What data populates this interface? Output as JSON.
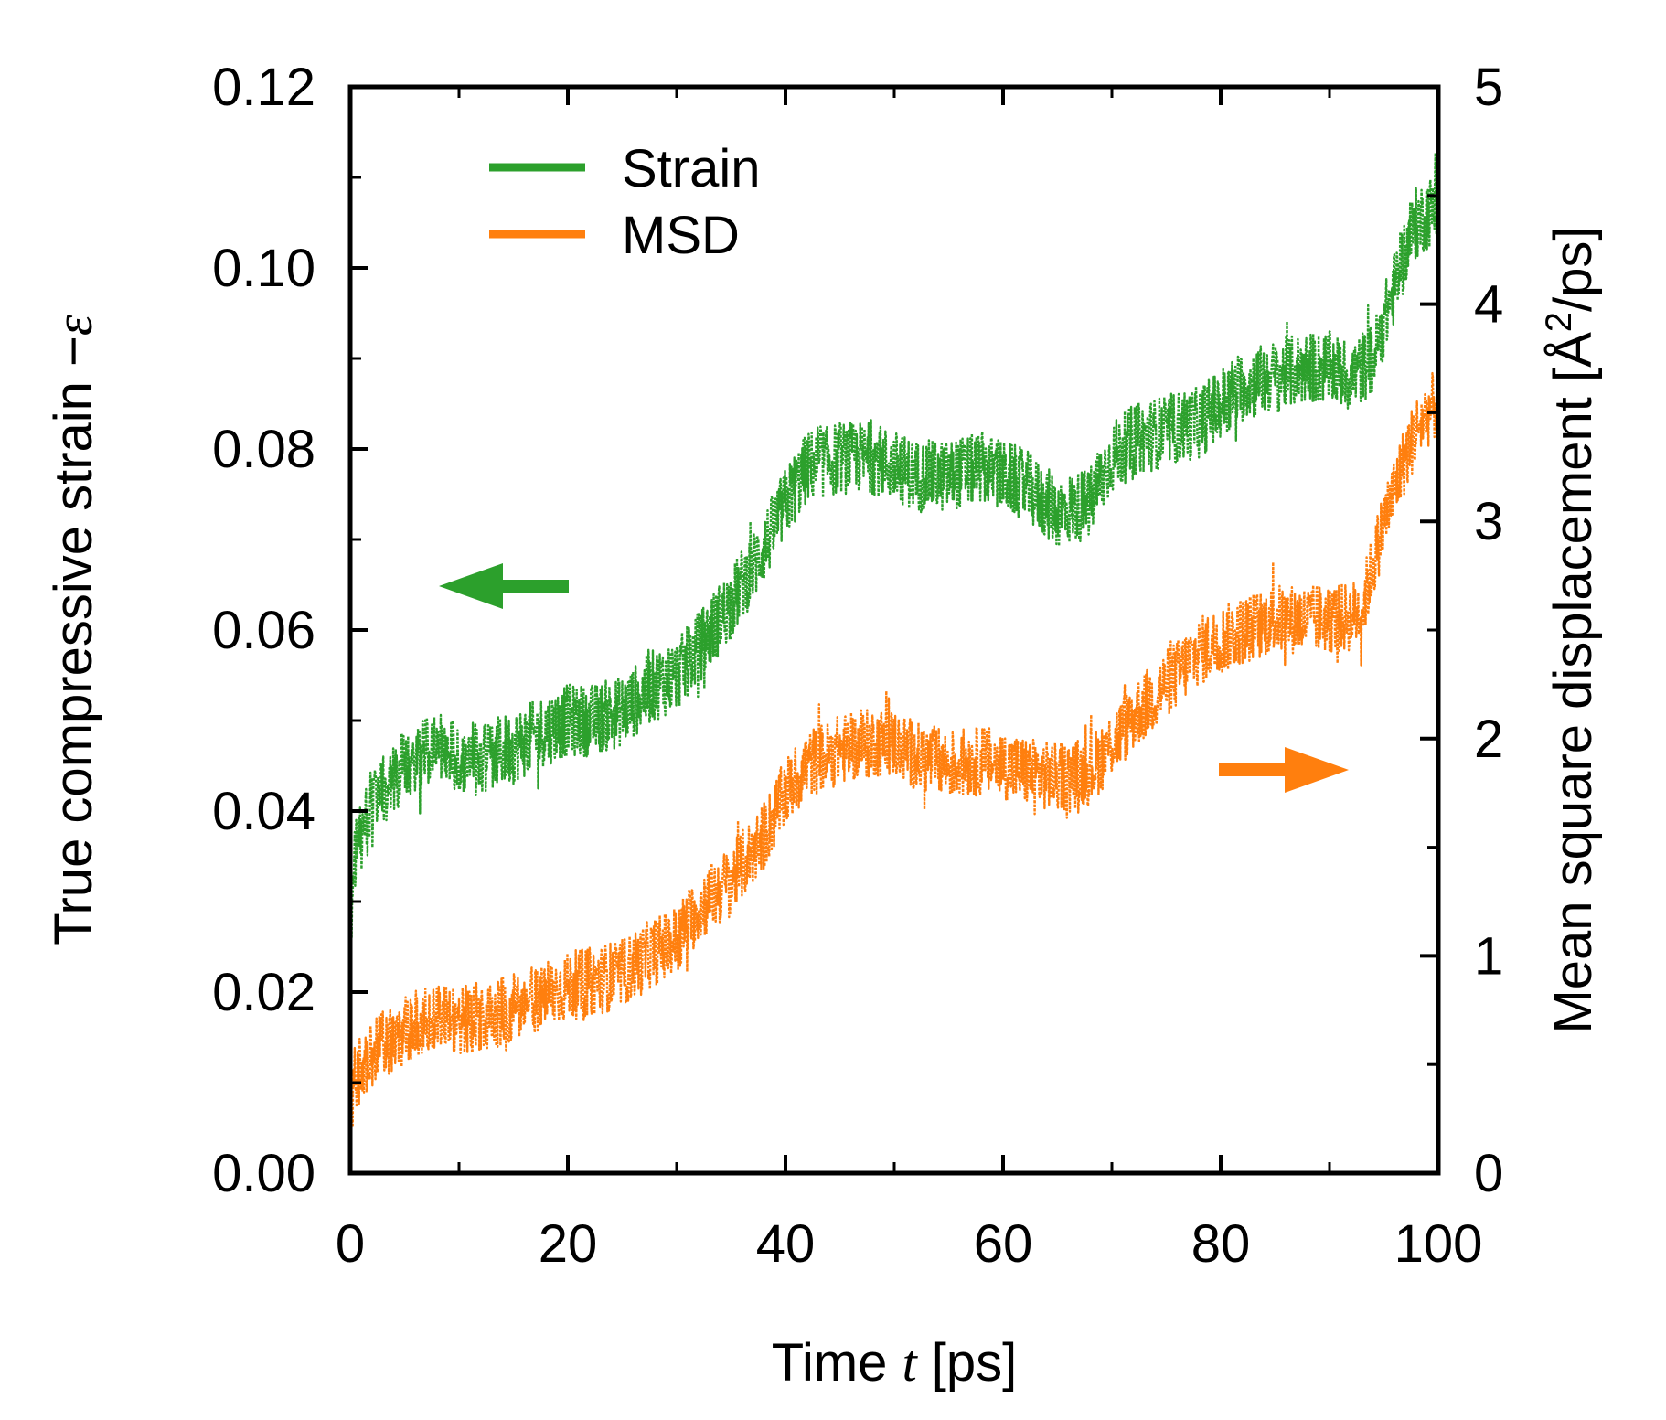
{
  "chart_data": {
    "type": "line",
    "title": "",
    "xlabel": "Time t [ps]",
    "xlabel_prefix": "Time ",
    "xlabel_var": "t",
    "xlabel_unit": " [ps]",
    "ylabel_left": "True compressive strain −ε",
    "ylabel_left_text": "True compressive strain −",
    "ylabel_left_var": "ε",
    "ylabel_right": "Mean square displacement [Å²/ps]",
    "ylabel_right_prefix": "Mean square displacement [Å",
    "ylabel_right_sup": "2",
    "ylabel_right_suffix": "/ps]",
    "xlim": [
      0,
      100
    ],
    "ylim_left": [
      0,
      0.12
    ],
    "ylim_right": [
      0,
      5
    ],
    "x_ticks": [
      "0",
      "20",
      "40",
      "60",
      "80",
      "100"
    ],
    "y_left_ticks": [
      "0.00",
      "0.02",
      "0.04",
      "0.06",
      "0.08",
      "0.10",
      "0.12"
    ],
    "y_right_ticks": [
      "0",
      "1",
      "2",
      "3",
      "4",
      "5"
    ],
    "legend_position": "top-left",
    "grid": false,
    "series": [
      {
        "name": "Strain",
        "axis": "left",
        "color": "#2ca02c",
        "trend_x": [
          0,
          0.5,
          2,
          4,
          6,
          8,
          10,
          12,
          15,
          18,
          20,
          22,
          25,
          28,
          30,
          32,
          35,
          38,
          40,
          42,
          45,
          48,
          50,
          52,
          55,
          58,
          60,
          62,
          65,
          68,
          70,
          72,
          75,
          78,
          80,
          82,
          85,
          88,
          90,
          92,
          94,
          95,
          96,
          97,
          98,
          99,
          100
        ],
        "trend_y": [
          0.026,
          0.036,
          0.04,
          0.044,
          0.046,
          0.047,
          0.046,
          0.046,
          0.047,
          0.049,
          0.05,
          0.05,
          0.051,
          0.054,
          0.055,
          0.058,
          0.063,
          0.069,
          0.074,
          0.078,
          0.079,
          0.079,
          0.078,
          0.077,
          0.077,
          0.078,
          0.077,
          0.076,
          0.073,
          0.074,
          0.079,
          0.081,
          0.082,
          0.083,
          0.085,
          0.087,
          0.088,
          0.089,
          0.089,
          0.088,
          0.09,
          0.094,
          0.098,
          0.102,
          0.105,
          0.106,
          0.107
        ],
        "noise_amplitude": 0.004
      },
      {
        "name": "MSD",
        "axis": "right",
        "color": "#ff7f0e",
        "trend_x": [
          0,
          0.5,
          2,
          4,
          6,
          8,
          10,
          12,
          15,
          18,
          20,
          22,
          25,
          28,
          30,
          32,
          35,
          38,
          40,
          42,
          45,
          48,
          50,
          52,
          55,
          58,
          60,
          62,
          65,
          68,
          70,
          72,
          75,
          78,
          80,
          82,
          85,
          88,
          90,
          92,
          93,
          94,
          95,
          96,
          97,
          98,
          99,
          100
        ],
        "trend_y": [
          0.3,
          0.45,
          0.55,
          0.62,
          0.68,
          0.7,
          0.7,
          0.72,
          0.76,
          0.82,
          0.86,
          0.88,
          0.92,
          1.02,
          1.08,
          1.22,
          1.35,
          1.55,
          1.75,
          1.88,
          1.95,
          1.98,
          1.98,
          1.92,
          1.88,
          1.9,
          1.88,
          1.85,
          1.82,
          1.85,
          1.98,
          2.1,
          2.25,
          2.4,
          2.45,
          2.5,
          2.55,
          2.55,
          2.55,
          2.56,
          2.6,
          2.8,
          3.0,
          3.15,
          3.3,
          3.42,
          3.5,
          3.55
        ],
        "noise_amplitude": 0.16
      }
    ],
    "annotations": [
      {
        "type": "arrow",
        "direction": "left",
        "series": "Strain"
      },
      {
        "type": "arrow",
        "direction": "right",
        "series": "MSD"
      }
    ]
  }
}
